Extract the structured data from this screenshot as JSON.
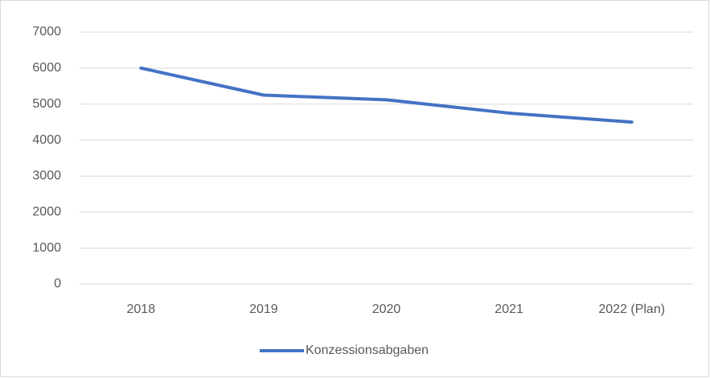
{
  "chart_data": {
    "type": "line",
    "categories": [
      "2018",
      "2019",
      "2020",
      "2021",
      "2022 (Plan)"
    ],
    "series": [
      {
        "name": "Konzessionsabgaben",
        "color": "#4472c4",
        "values": [
          6000,
          5250,
          5120,
          4750,
          4500
        ]
      }
    ],
    "ylim": [
      0,
      7000
    ],
    "yticks": [
      0,
      1000,
      2000,
      3000,
      4000,
      5000,
      6000,
      7000
    ],
    "grid": true,
    "legend": "bottom"
  }
}
